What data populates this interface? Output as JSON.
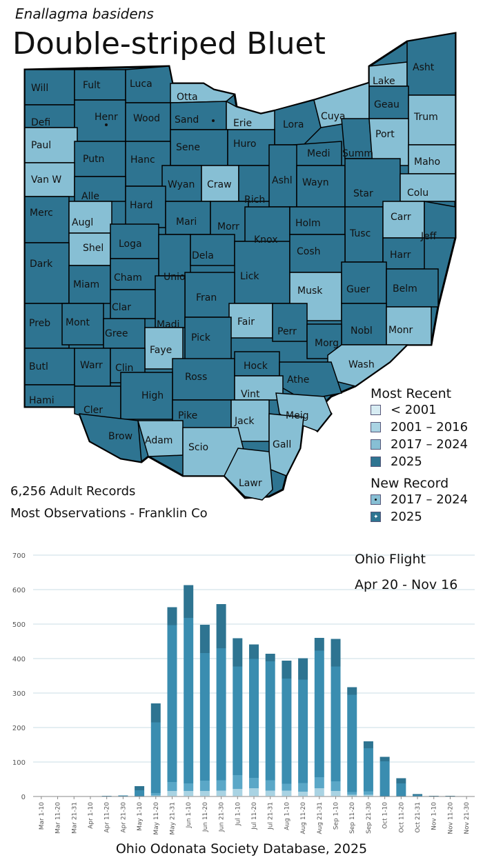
{
  "header": {
    "species": "Enallagma basidens",
    "common_name": "Double-striped Bluet"
  },
  "colors": {
    "lt2001": "#d7ecf3",
    "y2001_2016": "#a9d3e3",
    "y2017_2024": "#87bfd4",
    "y2025": "#2e7491",
    "bar_dark": "#2e7491",
    "bar_mid": "#3a8db0",
    "bar_light": "#a9d3e3"
  },
  "counties": [
    {
      "name": "Will",
      "period": "2025"
    },
    {
      "name": "Fult",
      "period": "2025"
    },
    {
      "name": "Luca",
      "period": "2025"
    },
    {
      "name": "Otta",
      "period": "2017-2024"
    },
    {
      "name": "Sand",
      "period": "2025"
    },
    {
      "name": "Erie",
      "period": "2017-2024"
    },
    {
      "name": "Lora",
      "period": "2025"
    },
    {
      "name": "Cuya",
      "period": "2017-2024"
    },
    {
      "name": "Lake",
      "period": "2017-2024"
    },
    {
      "name": "Asht",
      "period": "2025"
    },
    {
      "name": "Geau",
      "period": "2025"
    },
    {
      "name": "Trum",
      "period": "2017-2024"
    },
    {
      "name": "Defi",
      "period": "2025"
    },
    {
      "name": "Henr",
      "period": "2025"
    },
    {
      "name": "Wood",
      "period": "2025"
    },
    {
      "name": "Sene",
      "period": "2025"
    },
    {
      "name": "Huro",
      "period": "2025"
    },
    {
      "name": "Medi",
      "period": "2025"
    },
    {
      "name": "Summ",
      "period": "2025"
    },
    {
      "name": "Port",
      "period": "2017-2024"
    },
    {
      "name": "Maho",
      "period": "2017-2024"
    },
    {
      "name": "Paul",
      "period": "2017-2024"
    },
    {
      "name": "Putn",
      "period": "2025"
    },
    {
      "name": "Hanc",
      "period": "2025"
    },
    {
      "name": "Wyan",
      "period": "2025"
    },
    {
      "name": "Craw",
      "period": "2017-2024"
    },
    {
      "name": "Rich",
      "period": "2025"
    },
    {
      "name": "Ashl",
      "period": "2025"
    },
    {
      "name": "Wayn",
      "period": "2025"
    },
    {
      "name": "Star",
      "period": "2025"
    },
    {
      "name": "Colu",
      "period": "2017-2024"
    },
    {
      "name": "Van W",
      "period": "2017-2024"
    },
    {
      "name": "Alle",
      "period": "2025"
    },
    {
      "name": "Hard",
      "period": "2025"
    },
    {
      "name": "Mari",
      "period": "2025"
    },
    {
      "name": "Morr",
      "period": "2025"
    },
    {
      "name": "Knox",
      "period": "2025"
    },
    {
      "name": "Holm",
      "period": "2025"
    },
    {
      "name": "Tusc",
      "period": "2025"
    },
    {
      "name": "Carr",
      "period": "2017-2024"
    },
    {
      "name": "Jeff",
      "period": "2025"
    },
    {
      "name": "Merc",
      "period": "2025"
    },
    {
      "name": "Augl",
      "period": "2017-2024"
    },
    {
      "name": "Shel",
      "period": "2017-2024"
    },
    {
      "name": "Loga",
      "period": "2025"
    },
    {
      "name": "Unio",
      "period": "2025"
    },
    {
      "name": "Dela",
      "period": "2025"
    },
    {
      "name": "Lick",
      "period": "2025"
    },
    {
      "name": "Cosh",
      "period": "2025"
    },
    {
      "name": "Harr",
      "period": "2025"
    },
    {
      "name": "Dark",
      "period": "2025"
    },
    {
      "name": "Miam",
      "period": "2025"
    },
    {
      "name": "Cham",
      "period": "2025"
    },
    {
      "name": "Fran",
      "period": "2025"
    },
    {
      "name": "Musk",
      "period": "2017-2024"
    },
    {
      "name": "Guer",
      "period": "2025"
    },
    {
      "name": "Belm",
      "period": "2025"
    },
    {
      "name": "Clar",
      "period": "2025"
    },
    {
      "name": "Madi",
      "period": "2025"
    },
    {
      "name": "Fair",
      "period": "2017-2024"
    },
    {
      "name": "Perr",
      "period": "2025"
    },
    {
      "name": "Nobl",
      "period": "2025"
    },
    {
      "name": "Monr",
      "period": "2017-2024"
    },
    {
      "name": "Preb",
      "period": "2025"
    },
    {
      "name": "Mont",
      "period": "2025"
    },
    {
      "name": "Gree",
      "period": "2025"
    },
    {
      "name": "Faye",
      "period": "2017-2024"
    },
    {
      "name": "Pick",
      "period": "2025"
    },
    {
      "name": "Morg",
      "period": "2025"
    },
    {
      "name": "Wash",
      "period": "2017-2024"
    },
    {
      "name": "Butl",
      "period": "2025"
    },
    {
      "name": "Warr",
      "period": "2025"
    },
    {
      "name": "Clin",
      "period": "2025"
    },
    {
      "name": "Ross",
      "period": "2025"
    },
    {
      "name": "Hock",
      "period": "2025"
    },
    {
      "name": "Athe",
      "period": "2025"
    },
    {
      "name": "Vint",
      "period": "2017-2024"
    },
    {
      "name": "Hami",
      "period": "2025"
    },
    {
      "name": "Cler",
      "period": "2025"
    },
    {
      "name": "High",
      "period": "2025"
    },
    {
      "name": "Pike",
      "period": "2025"
    },
    {
      "name": "Jack",
      "period": "2017-2024"
    },
    {
      "name": "Meig",
      "period": "2017-2024"
    },
    {
      "name": "Brow",
      "period": "2025"
    },
    {
      "name": "Adam",
      "period": "2017-2024"
    },
    {
      "name": "Scio",
      "period": "2017-2024"
    },
    {
      "name": "Gall",
      "period": "2017-2024"
    },
    {
      "name": "Lawr",
      "period": "2017-2024"
    }
  ],
  "new_records": [
    {
      "county": "Henr",
      "period": "2017 – 2024"
    },
    {
      "county": "Sand",
      "period": "2017 – 2024"
    }
  ],
  "legend": {
    "title": "Most Recent",
    "items": [
      "< 2001",
      "2001 – 2016",
      "2017 – 2024",
      "2025"
    ],
    "new_record_title": "New Record",
    "new_record_items": [
      "2017 – 2024",
      "2025"
    ]
  },
  "stats": {
    "records": "6,256 Adult Records",
    "most_obs": "Most Observations - Franklin Co"
  },
  "flight": {
    "label": "Ohio Flight",
    "range": "Apr 20 - Nov 16"
  },
  "source": "Ohio Odonata Society Database, 2025",
  "chart_data": {
    "type": "bar",
    "stacked": true,
    "ylim": [
      0,
      700
    ],
    "yticks": [
      0,
      100,
      200,
      300,
      400,
      500,
      600,
      700
    ],
    "grid": true,
    "categories": [
      "Mar 1-10",
      "Mar 11-20",
      "Mar 21-31",
      "Apr 1-10",
      "Apr 11-20",
      "Apr 21-30",
      "May 1-10",
      "May 11-20",
      "May 21-31",
      "Jun 1-10",
      "Jun 11-20",
      "Jun 21-30",
      "Jul 1-10",
      "Jul 11-20",
      "Jul 21-31",
      "Aug 1-10",
      "Aug 11-20",
      "Aug 21-31",
      "Sep 1-10",
      "Sep 11-20",
      "Sep 21-30",
      "Oct 1-10",
      "Oct 11-20",
      "Oct 21-31",
      "Nov 1-10",
      "Nov 11-20",
      "Nov 21-30"
    ],
    "series": [
      {
        "name": "< 2001",
        "values": [
          0,
          0,
          0,
          0,
          0,
          0,
          0,
          0,
          2,
          2,
          2,
          2,
          2,
          2,
          2,
          2,
          2,
          2,
          2,
          0,
          0,
          0,
          0,
          0,
          0,
          0,
          0
        ]
      },
      {
        "name": "2001 – 2016",
        "values": [
          0,
          0,
          0,
          0,
          0,
          0,
          0,
          3,
          14,
          14,
          14,
          15,
          20,
          22,
          15,
          15,
          12,
          22,
          14,
          5,
          5,
          0,
          0,
          0,
          0,
          0,
          0
        ]
      },
      {
        "name": "2017 – 2024",
        "values": [
          0,
          0,
          0,
          0,
          0,
          0,
          0,
          7,
          26,
          22,
          30,
          30,
          40,
          30,
          30,
          20,
          25,
          32,
          28,
          8,
          10,
          0,
          0,
          0,
          0,
          0,
          0
        ]
      },
      {
        "name": "2025",
        "values": [
          0,
          0,
          0,
          0,
          2,
          3,
          18,
          205,
          455,
          480,
          370,
          383,
          315,
          345,
          345,
          305,
          300,
          367,
          333,
          282,
          125,
          102,
          38,
          4,
          1,
          1,
          0
        ]
      },
      {
        "name": "2025 (new)",
        "values": [
          0,
          0,
          0,
          0,
          0,
          0,
          12,
          55,
          52,
          95,
          82,
          128,
          82,
          42,
          22,
          52,
          62,
          37,
          80,
          22,
          20,
          13,
          15,
          3,
          1,
          1,
          0
        ]
      }
    ],
    "totals": [
      0,
      0,
      0,
      0,
      2,
      3,
      30,
      270,
      549,
      613,
      498,
      558,
      459,
      441,
      414,
      394,
      401,
      460,
      457,
      317,
      160,
      115,
      53,
      7,
      2,
      2,
      0
    ]
  }
}
